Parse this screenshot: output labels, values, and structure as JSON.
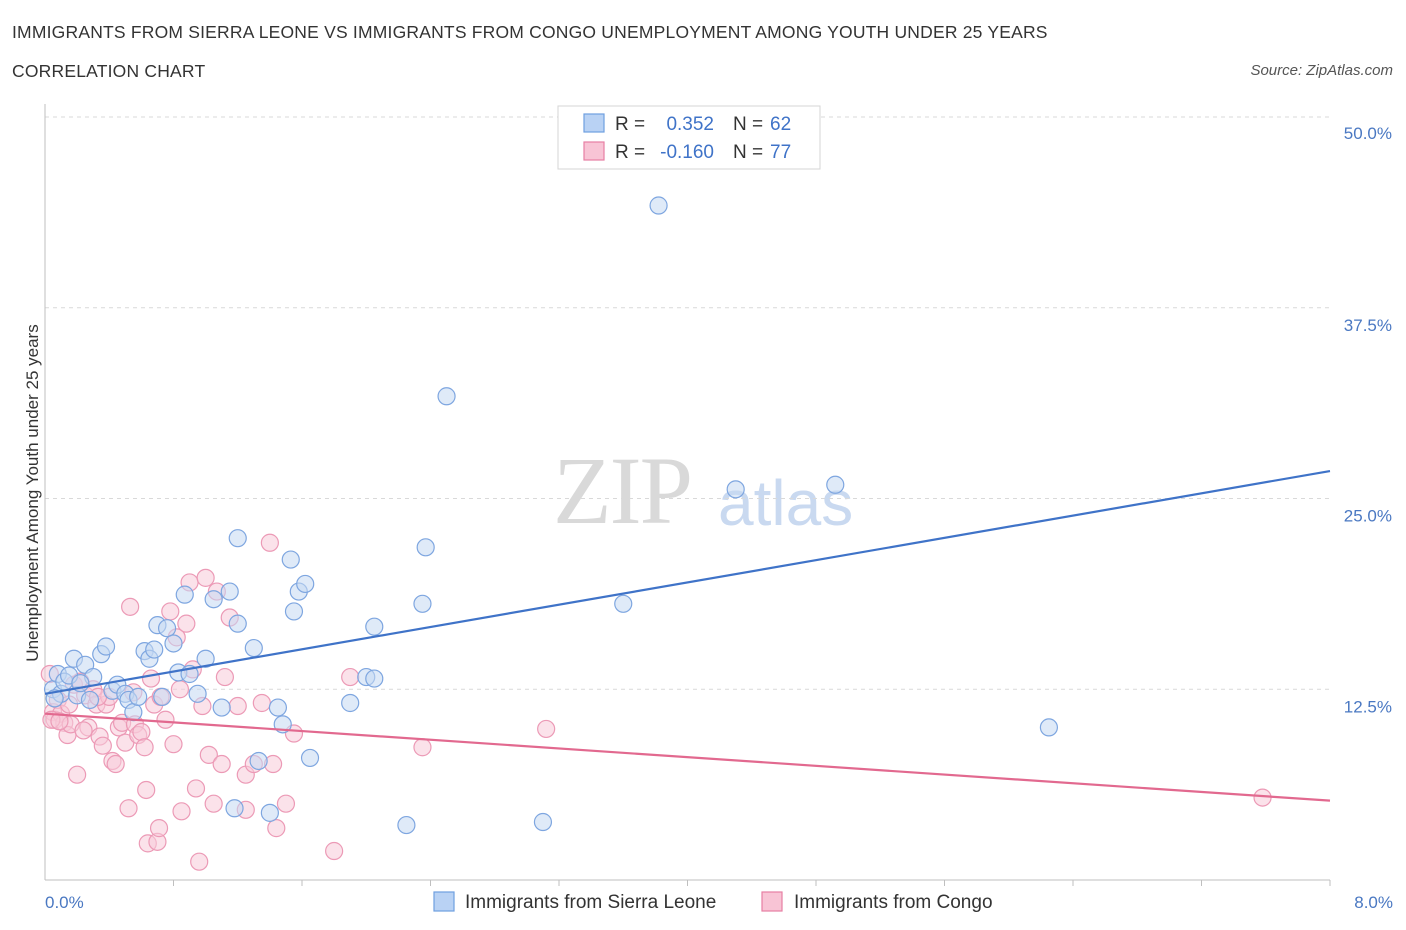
{
  "header": {
    "title": "IMMIGRANTS FROM SIERRA LEONE VS IMMIGRANTS FROM CONGO UNEMPLOYMENT AMONG YOUTH UNDER 25 YEARS",
    "subtitle": "CORRELATION CHART",
    "source": "Source: ZipAtlas.com"
  },
  "watermark": {
    "zip": "ZIP",
    "atlas": "atlas"
  },
  "legend": {
    "r_label": "R =",
    "n_label": "N =",
    "series": [
      {
        "r": "0.352",
        "n": "62",
        "color": "#6f9fe0",
        "fill": "#b9d2f4"
      },
      {
        "r": "-0.160",
        "n": "77",
        "color": "#e77fa3",
        "fill": "#f8c4d5"
      }
    ]
  },
  "bottom_legend": [
    "Immigrants from Sierra Leone",
    "Immigrants from Congo"
  ],
  "colors": {
    "blue_line": "#3f73c8",
    "pink_line": "#e2698f",
    "blue_point_stroke": "#7ea6e0",
    "blue_point_fill": "#c4d8f3",
    "pink_point_stroke": "#ec9ab6",
    "pink_point_fill": "#f7cbd9",
    "grid": "#d9d9d9",
    "tick_label": "#4a78c2"
  },
  "chart_data": {
    "type": "scatter",
    "title": "IMMIGRANTS FROM SIERRA LEONE VS IMMIGRANTS FROM CONGO UNEMPLOYMENT AMONG YOUTH UNDER 25 YEARS",
    "xlabel": "",
    "ylabel": "Unemployment Among Youth under 25 years",
    "xlim": [
      0,
      8
    ],
    "ylim": [
      0,
      50
    ],
    "x_tick_labels": [
      "0.0%",
      "8.0%"
    ],
    "y_ticks": [
      12.5,
      25.0,
      37.5,
      50.0
    ],
    "y_tick_labels": [
      "12.5%",
      "25.0%",
      "37.5%",
      "50.0%"
    ],
    "grid": true,
    "legend_position": "top-center",
    "series": [
      {
        "name": "Immigrants from Sierra Leone",
        "r": 0.352,
        "n": 62,
        "trend": [
          [
            0,
            12.2
          ],
          [
            8,
            26.8
          ]
        ],
        "points": [
          [
            0.05,
            12.5
          ],
          [
            0.08,
            13.5
          ],
          [
            0.1,
            12.2
          ],
          [
            0.12,
            13.0
          ],
          [
            0.15,
            13.4
          ],
          [
            0.18,
            14.5
          ],
          [
            0.2,
            12.1
          ],
          [
            0.25,
            14.1
          ],
          [
            0.28,
            11.8
          ],
          [
            0.3,
            13.3
          ],
          [
            0.35,
            14.8
          ],
          [
            0.38,
            15.3
          ],
          [
            0.42,
            12.4
          ],
          [
            0.45,
            12.8
          ],
          [
            0.5,
            12.2
          ],
          [
            0.52,
            11.8
          ],
          [
            0.55,
            11.0
          ],
          [
            0.58,
            12.0
          ],
          [
            0.62,
            15.0
          ],
          [
            0.65,
            14.5
          ],
          [
            0.68,
            15.1
          ],
          [
            0.7,
            16.7
          ],
          [
            0.73,
            12.0
          ],
          [
            0.76,
            16.5
          ],
          [
            0.8,
            15.5
          ],
          [
            0.83,
            13.6
          ],
          [
            0.87,
            18.7
          ],
          [
            0.9,
            13.5
          ],
          [
            0.95,
            12.2
          ],
          [
            1.0,
            14.5
          ],
          [
            1.05,
            18.4
          ],
          [
            1.1,
            11.3
          ],
          [
            1.15,
            18.9
          ],
          [
            1.18,
            4.7
          ],
          [
            1.2,
            16.8
          ],
          [
            1.2,
            22.4
          ],
          [
            1.3,
            15.2
          ],
          [
            1.33,
            7.8
          ],
          [
            1.4,
            4.4
          ],
          [
            1.45,
            11.3
          ],
          [
            1.48,
            10.2
          ],
          [
            1.53,
            21.0
          ],
          [
            1.55,
            17.6
          ],
          [
            1.58,
            18.9
          ],
          [
            1.62,
            19.4
          ],
          [
            1.65,
            8.0
          ],
          [
            1.9,
            11.6
          ],
          [
            2.0,
            13.3
          ],
          [
            2.05,
            13.2
          ],
          [
            2.05,
            16.6
          ],
          [
            2.25,
            3.6
          ],
          [
            2.35,
            18.1
          ],
          [
            2.37,
            21.8
          ],
          [
            2.5,
            31.7
          ],
          [
            3.1,
            3.8
          ],
          [
            3.6,
            18.1
          ],
          [
            3.82,
            44.2
          ],
          [
            4.3,
            25.6
          ],
          [
            4.92,
            25.9
          ],
          [
            6.25,
            10.0
          ],
          [
            0.06,
            11.9
          ],
          [
            0.22,
            12.9
          ]
        ]
      },
      {
        "name": "Immigrants from Congo",
        "r": -0.16,
        "n": 77,
        "trend": [
          [
            0,
            10.9
          ],
          [
            8,
            5.2
          ]
        ],
        "points": [
          [
            0.03,
            13.5
          ],
          [
            0.05,
            11.0
          ],
          [
            0.06,
            10.5
          ],
          [
            0.08,
            11.8
          ],
          [
            0.1,
            10.9
          ],
          [
            0.12,
            10.3
          ],
          [
            0.14,
            9.5
          ],
          [
            0.16,
            10.2
          ],
          [
            0.18,
            12.8
          ],
          [
            0.2,
            6.9
          ],
          [
            0.22,
            13.0
          ],
          [
            0.25,
            12.1
          ],
          [
            0.27,
            10.0
          ],
          [
            0.3,
            12.5
          ],
          [
            0.32,
            11.5
          ],
          [
            0.34,
            9.4
          ],
          [
            0.36,
            8.8
          ],
          [
            0.38,
            11.5
          ],
          [
            0.4,
            12.0
          ],
          [
            0.42,
            7.8
          ],
          [
            0.44,
            7.6
          ],
          [
            0.46,
            10.0
          ],
          [
            0.48,
            10.3
          ],
          [
            0.5,
            9.0
          ],
          [
            0.52,
            4.7
          ],
          [
            0.53,
            17.9
          ],
          [
            0.55,
            12.3
          ],
          [
            0.56,
            10.2
          ],
          [
            0.58,
            9.5
          ],
          [
            0.6,
            9.7
          ],
          [
            0.62,
            8.7
          ],
          [
            0.63,
            5.9
          ],
          [
            0.64,
            2.4
          ],
          [
            0.66,
            13.2
          ],
          [
            0.68,
            11.5
          ],
          [
            0.7,
            2.5
          ],
          [
            0.71,
            3.4
          ],
          [
            0.72,
            12.0
          ],
          [
            0.75,
            10.5
          ],
          [
            0.78,
            17.6
          ],
          [
            0.8,
            8.9
          ],
          [
            0.82,
            15.9
          ],
          [
            0.84,
            12.5
          ],
          [
            0.85,
            4.5
          ],
          [
            0.88,
            16.8
          ],
          [
            0.9,
            19.5
          ],
          [
            0.92,
            13.8
          ],
          [
            0.94,
            6.0
          ],
          [
            0.96,
            1.2
          ],
          [
            0.98,
            11.4
          ],
          [
            1.0,
            19.8
          ],
          [
            1.02,
            8.2
          ],
          [
            1.05,
            5.0
          ],
          [
            1.07,
            18.9
          ],
          [
            1.1,
            7.6
          ],
          [
            1.12,
            13.3
          ],
          [
            1.15,
            17.2
          ],
          [
            1.2,
            11.4
          ],
          [
            1.25,
            6.9
          ],
          [
            1.25,
            4.6
          ],
          [
            1.3,
            7.6
          ],
          [
            1.35,
            11.6
          ],
          [
            1.4,
            22.1
          ],
          [
            1.42,
            7.6
          ],
          [
            1.44,
            3.4
          ],
          [
            1.5,
            5.0
          ],
          [
            1.55,
            9.6
          ],
          [
            1.8,
            1.9
          ],
          [
            1.9,
            13.3
          ],
          [
            2.35,
            8.7
          ],
          [
            3.12,
            9.9
          ],
          [
            7.58,
            5.4
          ],
          [
            0.04,
            10.5
          ],
          [
            0.09,
            10.4
          ],
          [
            0.15,
            11.5
          ],
          [
            0.24,
            9.8
          ],
          [
            0.33,
            12.0
          ]
        ]
      }
    ]
  }
}
